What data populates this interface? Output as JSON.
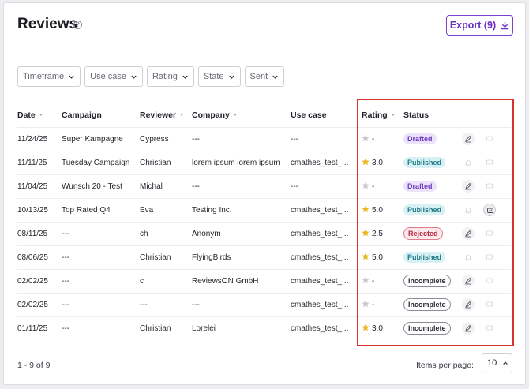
{
  "header": {
    "title": "Reviews",
    "help_glyph": "?",
    "export_label": "Export (9)"
  },
  "filters": [
    "Timeframe",
    "Use case",
    "Rating",
    "State",
    "Sent"
  ],
  "table": {
    "columns": [
      "Date",
      "Campaign",
      "Reviewer",
      "Company",
      "Use case",
      "Rating",
      "Status"
    ],
    "rows": [
      {
        "date": "11/24/25",
        "campaign": "Super Kampagne",
        "reviewer": "Cypress",
        "company": "---",
        "use_case": "---",
        "rating": "-",
        "rated": false,
        "status": "Drafted"
      },
      {
        "date": "11/11/25",
        "campaign": "Tuesday Campaign",
        "reviewer": "Christian",
        "company": "lorem ipsum lorem ipsum",
        "use_case": "cmathes_test_...",
        "rating": "3.0",
        "rated": true,
        "status": "Published"
      },
      {
        "date": "11/04/25",
        "campaign": "Wunsch 20 - Test",
        "reviewer": "Michal",
        "company": "---",
        "use_case": "---",
        "rating": "-",
        "rated": false,
        "status": "Drafted"
      },
      {
        "date": "10/13/25",
        "campaign": "Top Rated Q4",
        "reviewer": "Eva",
        "company": "Testing Inc.",
        "use_case": "cmathes_test_...",
        "rating": "5.0",
        "rated": true,
        "status": "Published"
      },
      {
        "date": "08/11/25",
        "campaign": "---",
        "reviewer": "ch",
        "company": "Anonym",
        "use_case": "cmathes_test_...",
        "rating": "2.5",
        "rated": true,
        "status": "Rejected"
      },
      {
        "date": "08/06/25",
        "campaign": "---",
        "reviewer": "Christian",
        "company": "FlyingBirds",
        "use_case": "cmathes_test_...",
        "rating": "5.0",
        "rated": true,
        "status": "Published"
      },
      {
        "date": "02/02/25",
        "campaign": "---",
        "reviewer": "c",
        "company": "ReviewsON GmbH",
        "use_case": "cmathes_test_...",
        "rating": "-",
        "rated": false,
        "status": "Incomplete"
      },
      {
        "date": "02/02/25",
        "campaign": "---",
        "reviewer": "---",
        "company": "---",
        "use_case": "cmathes_test_...",
        "rating": "-",
        "rated": false,
        "status": "Incomplete"
      },
      {
        "date": "01/11/25",
        "campaign": "---",
        "reviewer": "Christian",
        "company": "Lorelei",
        "use_case": "cmathes_test_...",
        "rating": "3.0",
        "rated": true,
        "status": "Incomplete"
      }
    ]
  },
  "footer": {
    "range": "1 - 9 of 9",
    "items_per_page_label": "Items per page:",
    "items_per_page_value": "10"
  },
  "colors": {
    "accent": "#6a2fc4",
    "star_filled": "#e8b923",
    "star_empty": "#c9c9d2",
    "highlight_box": "#d4342a"
  },
  "icons": {
    "export": "download-icon",
    "filter": "chevron-down-icon",
    "approve": "approve-icon",
    "bell": "bell-icon",
    "comment": "comment-icon"
  }
}
